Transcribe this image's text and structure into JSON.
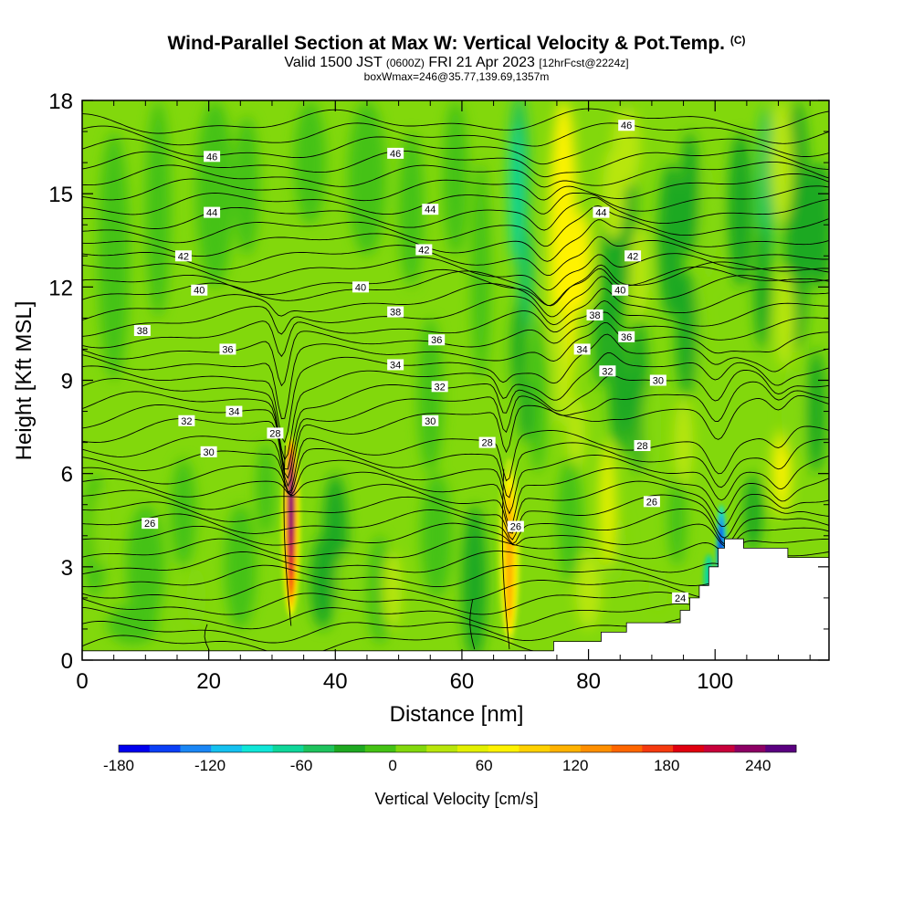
{
  "header": {
    "title": "Wind-Parallel Section at Max W: Vertical Velocity & Pot.Temp.",
    "copyright": "(C)",
    "valid_main": "Valid 1500 JST",
    "valid_utc": "(0600Z)",
    "valid_date": "FRI 21 Apr 2023",
    "forecast": "[12hrFcst@2224z]",
    "box": "boxWmax=246@35.77,139.69,1357m"
  },
  "colors": {
    "colorbar": [
      "#0000ee",
      "#0b3ff6",
      "#1a86f5",
      "#15c1f0",
      "#10e6d8",
      "#0fd79a",
      "#1ec35d",
      "#1ea921",
      "#44c214",
      "#82d80c",
      "#b8e60a",
      "#e3f000",
      "#fff200",
      "#ffd100",
      "#ffb200",
      "#ff8f00",
      "#ff6600",
      "#f53a0f",
      "#e0000f",
      "#c8003a",
      "#8c0064",
      "#5a0080"
    ],
    "terrain": "#ffffff",
    "contour": "#000000"
  },
  "chart_data": {
    "type": "heatmap",
    "xlabel": "Distance [nm]",
    "ylabel": "Height [Kft MSL]",
    "xlim": [
      0,
      118
    ],
    "ylim": [
      0,
      18
    ],
    "x_ticks": [
      0,
      20,
      40,
      60,
      80,
      100
    ],
    "y_ticks": [
      0,
      3,
      6,
      9,
      12,
      15,
      18
    ],
    "colorbar": {
      "label": "Vertical Velocity [cm/s]",
      "ticks": [
        -180,
        -120,
        -60,
        0,
        60,
        120,
        180,
        240
      ],
      "min": -180,
      "max": 265
    },
    "contour_field": "potential temperature",
    "contour_levels": [
      24,
      26,
      28,
      30,
      32,
      34,
      36,
      38,
      40,
      42,
      44,
      46
    ],
    "contour_labels": [
      {
        "text": "46",
        "x": 20.5,
        "y": 16.2
      },
      {
        "text": "46",
        "x": 49.5,
        "y": 16.3
      },
      {
        "text": "46",
        "x": 86,
        "y": 17.2
      },
      {
        "text": "44",
        "x": 20.5,
        "y": 14.4
      },
      {
        "text": "44",
        "x": 55,
        "y": 14.5
      },
      {
        "text": "44",
        "x": 82,
        "y": 14.4
      },
      {
        "text": "42",
        "x": 16,
        "y": 13.0
      },
      {
        "text": "42",
        "x": 54,
        "y": 13.2
      },
      {
        "text": "42",
        "x": 87,
        "y": 13.0
      },
      {
        "text": "40",
        "x": 18.5,
        "y": 11.9
      },
      {
        "text": "40",
        "x": 44,
        "y": 12.0
      },
      {
        "text": "40",
        "x": 85,
        "y": 11.9
      },
      {
        "text": "38",
        "x": 9.5,
        "y": 10.6
      },
      {
        "text": "38",
        "x": 49.5,
        "y": 11.2
      },
      {
        "text": "38",
        "x": 81,
        "y": 11.1
      },
      {
        "text": "36",
        "x": 23,
        "y": 10.0
      },
      {
        "text": "36",
        "x": 56,
        "y": 10.3
      },
      {
        "text": "36",
        "x": 86,
        "y": 10.4
      },
      {
        "text": "34",
        "x": 79,
        "y": 10.0
      },
      {
        "text": "34",
        "x": 49.5,
        "y": 9.5
      },
      {
        "text": "34",
        "x": 24,
        "y": 8.0
      },
      {
        "text": "32",
        "x": 16.5,
        "y": 7.7
      },
      {
        "text": "32",
        "x": 56.5,
        "y": 8.8
      },
      {
        "text": "32",
        "x": 83,
        "y": 9.3
      },
      {
        "text": "30",
        "x": 20,
        "y": 6.7
      },
      {
        "text": "30",
        "x": 55,
        "y": 7.7
      },
      {
        "text": "30",
        "x": 91,
        "y": 9.0
      },
      {
        "text": "28",
        "x": 30.5,
        "y": 7.3
      },
      {
        "text": "28",
        "x": 64,
        "y": 7.0
      },
      {
        "text": "28",
        "x": 88.5,
        "y": 6.9
      },
      {
        "text": "26",
        "x": 10.7,
        "y": 4.4
      },
      {
        "text": "26",
        "x": 90,
        "y": 5.1
      },
      {
        "text": "26",
        "x": 68.5,
        "y": 4.3
      },
      {
        "text": "24",
        "x": 94.5,
        "y": 2.0
      }
    ],
    "updrafts": [
      {
        "x": 33,
        "y_bottom": 1.2,
        "y_top": 7.3,
        "peak_cm_s": 246
      },
      {
        "x": 67.5,
        "y_bottom": 0.6,
        "y_top": 6.6,
        "peak_cm_s": 110
      },
      {
        "x": 75.5,
        "y_bottom": 6.0,
        "y_top": 18.0,
        "peak_cm_s": 70
      },
      {
        "x": 83,
        "y_bottom": 3.5,
        "y_top": 7.5,
        "peak_cm_s": 60
      },
      {
        "x": 110.5,
        "y_bottom": 5.5,
        "y_top": 8.0,
        "peak_cm_s": 60
      }
    ],
    "downdrafts": [
      {
        "x": 68.5,
        "y_bottom": 14.0,
        "y_top": 17.5,
        "peak_cm_s": -60
      },
      {
        "x": 101,
        "y_bottom": 2.0,
        "y_top": 5.0,
        "peak_cm_s": -150
      }
    ],
    "terrain_profile": [
      [
        0,
        0.3
      ],
      [
        74.5,
        0.3
      ],
      [
        74.5,
        0.6
      ],
      [
        82,
        0.6
      ],
      [
        82,
        0.9
      ],
      [
        86,
        0.9
      ],
      [
        86,
        1.2
      ],
      [
        94.5,
        1.2
      ],
      [
        94.5,
        1.6
      ],
      [
        96,
        1.6
      ],
      [
        96,
        2.0
      ],
      [
        97.5,
        2.0
      ],
      [
        97.5,
        2.4
      ],
      [
        99,
        2.4
      ],
      [
        99,
        3.0
      ],
      [
        100.5,
        3.0
      ],
      [
        100.5,
        3.6
      ],
      [
        101.5,
        3.6
      ],
      [
        101.5,
        3.9
      ],
      [
        104.5,
        3.9
      ],
      [
        104.5,
        3.6
      ],
      [
        111.5,
        3.6
      ],
      [
        111.5,
        3.3
      ],
      [
        118,
        3.3
      ]
    ]
  }
}
